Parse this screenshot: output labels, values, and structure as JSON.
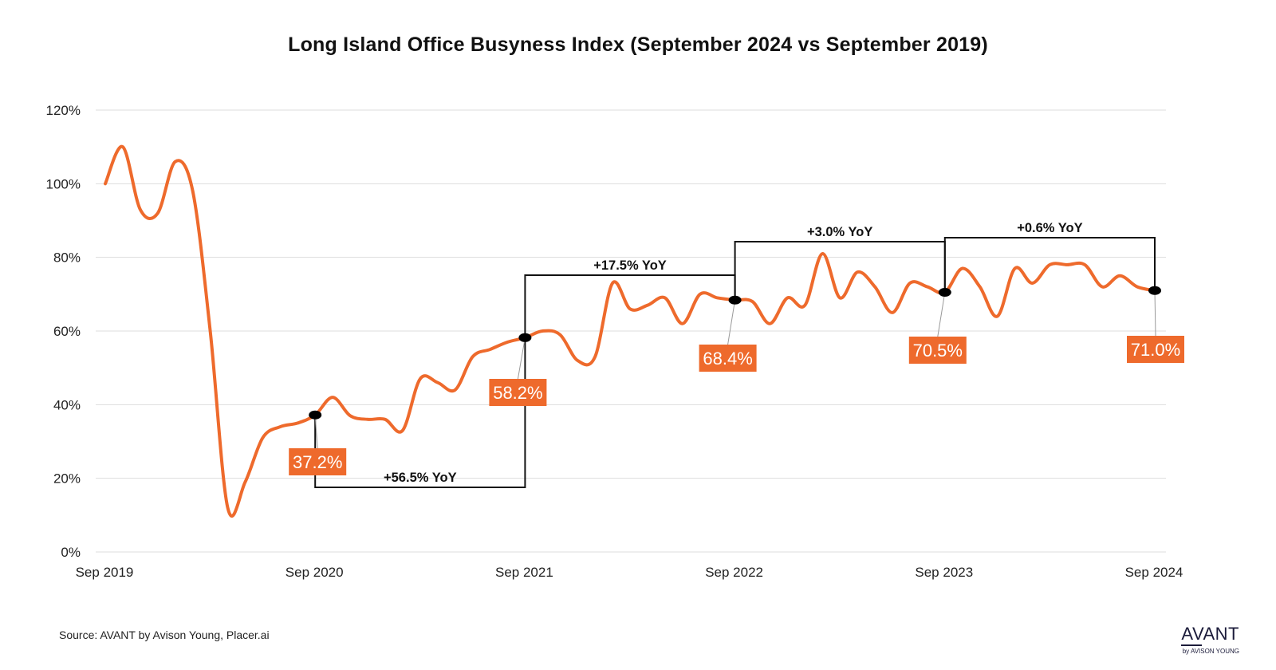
{
  "title": "Long Island Office Busyness Index (September 2024 vs September 2019)",
  "source": "Source: AVANT by Avison Young, Placer.ai",
  "logo": {
    "main": "AVANT",
    "sub": "by AVISON YOUNG"
  },
  "colors": {
    "line": "#ee6a2c",
    "label_bg": "#ee6a2c",
    "label_text": "#ffffff",
    "bracket": "#111111",
    "grid": "#dddddd"
  },
  "chart_data": {
    "type": "line",
    "title": "Long Island Office Busyness Index (September 2024 vs September 2019)",
    "xlabel": "",
    "ylabel": "",
    "ylim": [
      0,
      120
    ],
    "y_ticks": [
      0,
      20,
      40,
      60,
      80,
      100,
      120
    ],
    "y_tick_labels": [
      "0%",
      "20%",
      "40%",
      "60%",
      "80%",
      "100%",
      "120%"
    ],
    "x_ticks": [
      0,
      12,
      24,
      36,
      48,
      60
    ],
    "x_tick_labels": [
      "Sep 2019",
      "Sep 2020",
      "Sep 2021",
      "Sep 2022",
      "Sep 2023",
      "Sep 2024"
    ],
    "grid": true,
    "series": [
      {
        "values": [
          [
            0,
            100
          ],
          [
            1,
            110
          ],
          [
            2,
            93
          ],
          [
            3,
            92
          ],
          [
            4,
            106
          ],
          [
            5,
            98
          ],
          [
            6,
            60
          ],
          [
            7,
            12
          ],
          [
            8,
            19
          ],
          [
            9,
            31
          ],
          [
            10,
            34
          ],
          [
            11,
            35
          ],
          [
            12,
            37.2
          ],
          [
            13,
            42
          ],
          [
            14,
            37
          ],
          [
            15,
            36
          ],
          [
            16,
            36
          ],
          [
            17,
            33
          ],
          [
            18,
            47
          ],
          [
            19,
            46
          ],
          [
            20,
            44
          ],
          [
            21,
            53
          ],
          [
            22,
            55
          ],
          [
            23,
            57
          ],
          [
            24,
            58.2
          ],
          [
            25,
            60
          ],
          [
            26,
            59
          ],
          [
            27,
            52
          ],
          [
            28,
            53
          ],
          [
            29,
            73
          ],
          [
            30,
            66
          ],
          [
            31,
            67
          ],
          [
            32,
            69
          ],
          [
            33,
            62
          ],
          [
            34,
            70
          ],
          [
            35,
            69
          ],
          [
            36,
            68.4
          ],
          [
            37,
            68
          ],
          [
            38,
            62
          ],
          [
            39,
            69
          ],
          [
            40,
            67
          ],
          [
            41,
            81
          ],
          [
            42,
            69
          ],
          [
            43,
            76
          ],
          [
            44,
            72
          ],
          [
            45,
            65
          ],
          [
            46,
            73
          ],
          [
            47,
            72
          ],
          [
            48,
            70.5
          ],
          [
            49,
            77
          ],
          [
            50,
            72
          ],
          [
            51,
            64
          ],
          [
            52,
            77
          ],
          [
            53,
            73
          ],
          [
            54,
            78
          ],
          [
            55,
            78
          ],
          [
            56,
            78
          ],
          [
            57,
            72
          ],
          [
            58,
            75
          ],
          [
            59,
            72
          ],
          [
            60,
            71.0
          ]
        ]
      }
    ],
    "markers": [
      {
        "x": 12,
        "y": 37.2,
        "label": "37.2%"
      },
      {
        "x": 24,
        "y": 58.2,
        "label": "58.2%"
      },
      {
        "x": 36,
        "y": 68.4,
        "label": "68.4%"
      },
      {
        "x": 48,
        "y": 70.5,
        "label": "70.5%"
      },
      {
        "x": 60,
        "y": 71.0,
        "label": "71.0%"
      }
    ],
    "annotations": [
      {
        "from": 12,
        "to": 24,
        "text": "+56.5% YoY"
      },
      {
        "from": 24,
        "to": 36,
        "text": "+17.5% YoY"
      },
      {
        "from": 36,
        "to": 48,
        "text": "+3.0% YoY"
      },
      {
        "from": 48,
        "to": 60,
        "text": "+0.6% YoY"
      }
    ]
  }
}
